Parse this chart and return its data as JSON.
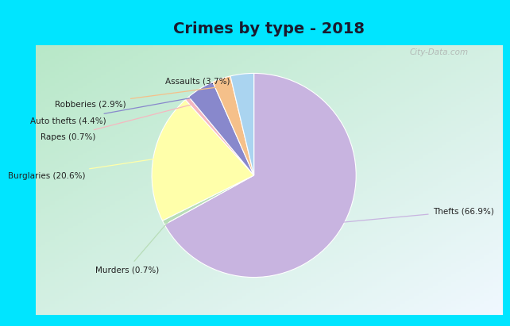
{
  "title": "Crimes by type - 2018",
  "title_color": "#1a1a2e",
  "title_fontsize": 14,
  "order_values": [
    66.9,
    0.7,
    20.6,
    0.7,
    4.4,
    2.9,
    3.7
  ],
  "order_colors": [
    "#c8b4e0",
    "#b8ddb8",
    "#ffffaa",
    "#f5b8c0",
    "#8888cc",
    "#f5c08a",
    "#aad4f0"
  ],
  "order_labels": [
    "Thefts (66.9%)",
    "Murders (0.7%)",
    "Burglaries (20.6%)",
    "Rapes (0.7%)",
    "Auto thefts (4.4%)",
    "Robberies (2.9%)",
    "Assaults (3.7%)"
  ],
  "bg_border": "#00e5ff",
  "bg_grad_green": "#b8e8c8",
  "bg_grad_white": "#f0f8ff",
  "watermark": "City-Data.com",
  "label_ha": {
    "Thefts (66.9%)": "left",
    "Murders (0.7%)": "left",
    "Burglaries (20.6%)": "right",
    "Rapes (0.7%)": "right",
    "Auto thefts (4.4%)": "right",
    "Robberies (2.9%)": "right",
    "Assaults (3.7%)": "center"
  }
}
